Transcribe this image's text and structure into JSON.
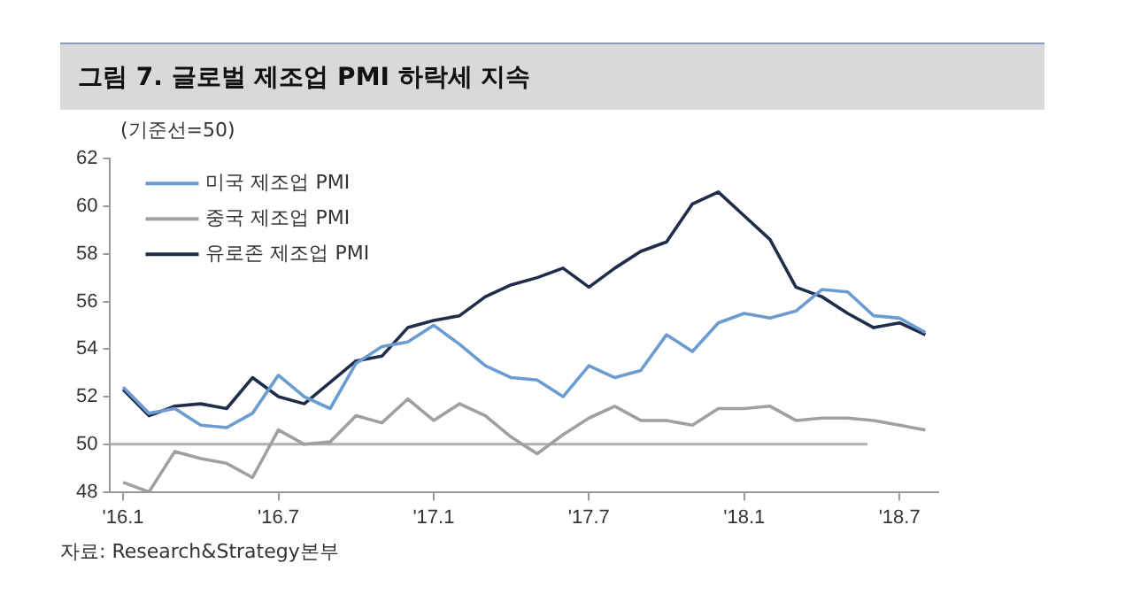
{
  "chart_data": {
    "type": "line",
    "title": "그림 7. 글로벌 제조업 PMI 하락세 지속",
    "annotations": [
      "(기준선=50)",
      "자료: Research&Strategy본부"
    ],
    "categories": [
      "'16.1",
      null,
      null,
      null,
      null,
      null,
      "'16.7",
      null,
      null,
      null,
      null,
      null,
      "'17.1",
      null,
      null,
      null,
      null,
      null,
      "'17.7",
      null,
      null,
      null,
      null,
      null,
      "'18.1",
      null,
      null,
      null,
      null,
      null,
      "'18.7",
      null
    ],
    "series": [
      {
        "name": "미국 제조업 PMI",
        "color": "#6a9bd1",
        "values": [
          52.4,
          51.3,
          51.5,
          50.8,
          50.7,
          51.3,
          52.9,
          52.0,
          51.5,
          53.4,
          54.1,
          54.3,
          55.0,
          54.2,
          53.3,
          52.8,
          52.7,
          52.0,
          53.3,
          52.8,
          53.1,
          54.6,
          53.9,
          55.1,
          55.5,
          55.3,
          55.6,
          56.5,
          56.4,
          55.4,
          55.3,
          54.7
        ]
      },
      {
        "name": "중국 제조업 PMI",
        "color": "#a0a0a0",
        "values": [
          48.4,
          48.0,
          49.7,
          49.4,
          49.2,
          48.6,
          50.6,
          50.0,
          50.1,
          51.2,
          50.9,
          51.9,
          51.0,
          51.7,
          51.2,
          50.3,
          49.6,
          50.4,
          51.1,
          51.6,
          51.0,
          51.0,
          50.8,
          51.5,
          51.5,
          51.6,
          51.0,
          51.1,
          51.1,
          51.0,
          50.8,
          50.6
        ]
      },
      {
        "name": "유로존 제조업 PMI",
        "color": "#1f2d4a",
        "values": [
          52.3,
          51.2,
          51.6,
          51.7,
          51.5,
          52.8,
          52.0,
          51.7,
          52.6,
          53.5,
          53.7,
          54.9,
          55.2,
          55.4,
          56.2,
          56.7,
          57.0,
          57.4,
          56.6,
          57.4,
          58.1,
          58.5,
          60.1,
          60.6,
          59.6,
          58.6,
          56.6,
          56.2,
          55.5,
          54.9,
          55.1,
          54.6
        ]
      }
    ],
    "ylim": [
      48,
      62
    ],
    "yticks": [
      48,
      50,
      52,
      54,
      56,
      58,
      60,
      62
    ],
    "ref_lines": [
      {
        "axis": "y",
        "value": 50,
        "color": "#b0b0b0"
      }
    ],
    "grid": false,
    "legend": "top left",
    "marker": "none",
    "line_style": "solid"
  }
}
